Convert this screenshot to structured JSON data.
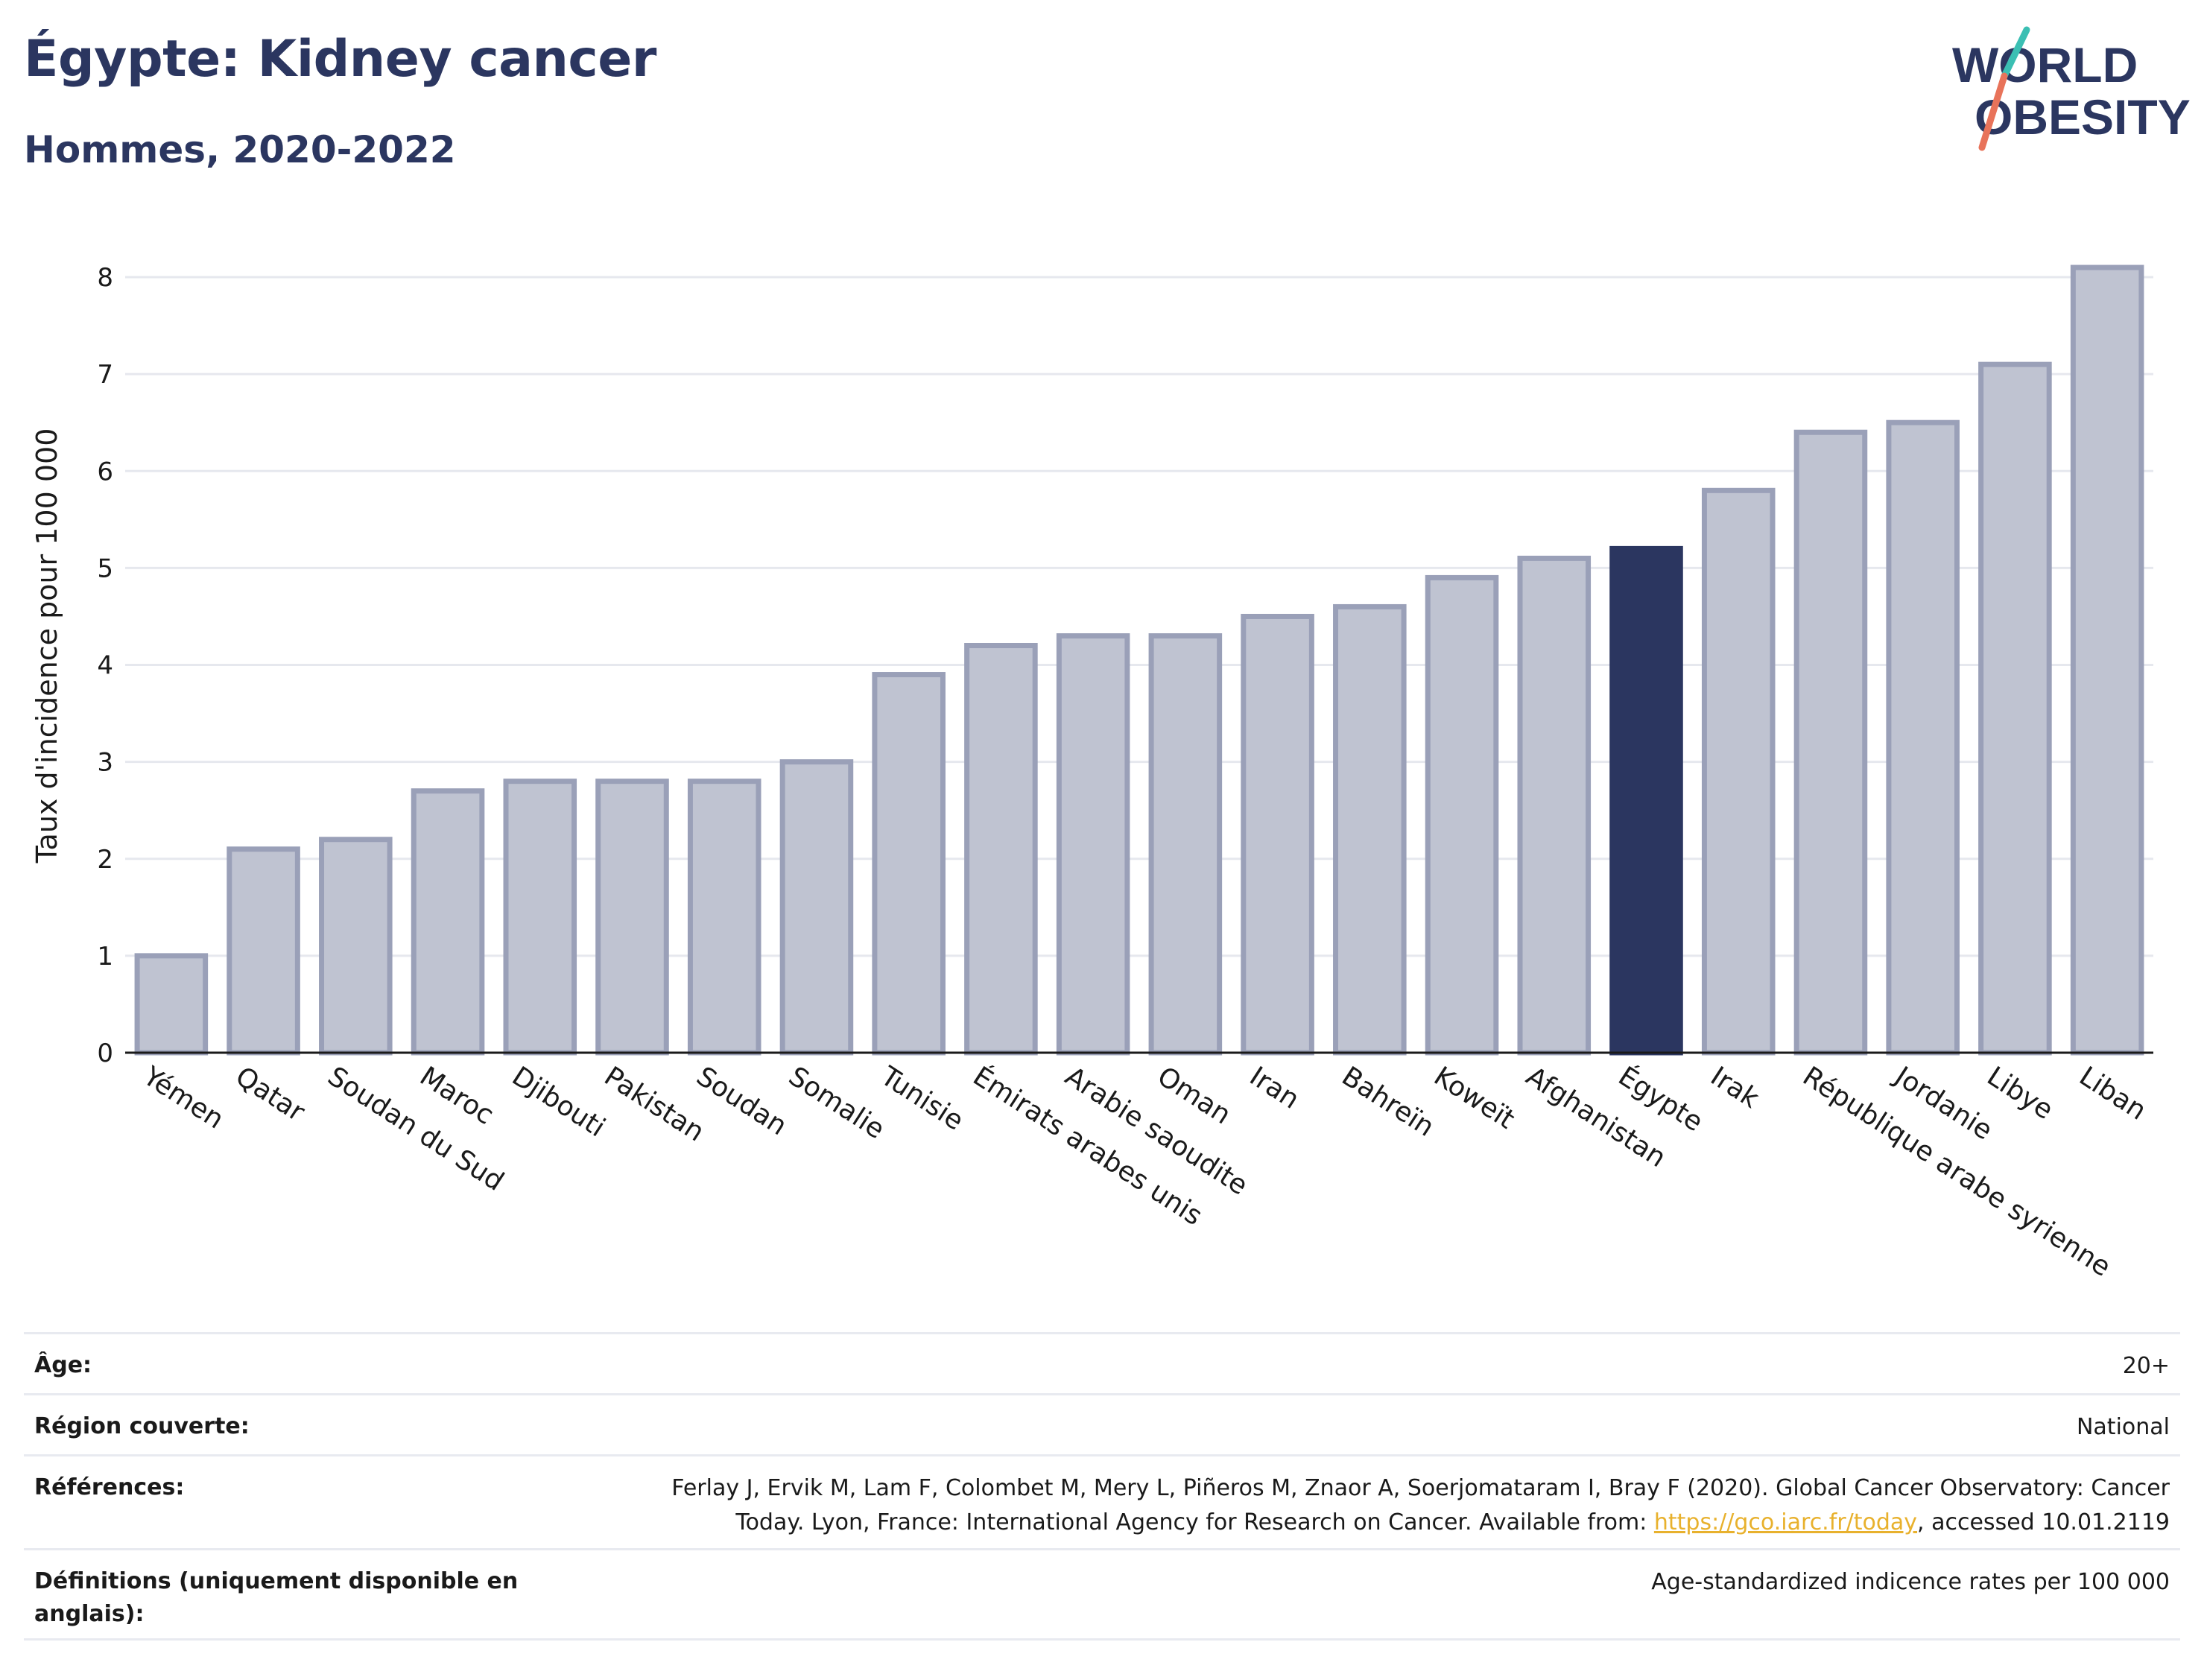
{
  "header": {
    "title": "Égypte: Kidney cancer",
    "subtitle": "Hommes, 2020-2022"
  },
  "logo": {
    "line1": "WORLD",
    "line2": "OBESITY",
    "colors": {
      "text": "#2b3660",
      "accent_teal": "#3bbfb3",
      "accent_coral": "#e8735a"
    }
  },
  "chart_data": {
    "type": "bar",
    "ylabel": "Taux d'incidence pour 100 000",
    "ylim": [
      0,
      8.4
    ],
    "yticks": [
      0,
      1,
      2,
      3,
      4,
      5,
      6,
      7,
      8
    ],
    "grid": true,
    "highlight_category": "Égypte",
    "colors": {
      "bar": "#bfc3d1",
      "bar_border": "#9aa0b8",
      "highlight": "#2b3660",
      "grid": "#e6e8ee"
    },
    "categories": [
      "Yémen",
      "Qatar",
      "Soudan du Sud",
      "Maroc",
      "Djibouti",
      "Pakistan",
      "Soudan",
      "Somalie",
      "Tunisie",
      "Émirats arabes unis",
      "Arabie saoudite",
      "Oman",
      "Iran",
      "Bahreïn",
      "Koweït",
      "Afghanistan",
      "Égypte",
      "Irak",
      "République arabe syrienne",
      "Jordanie",
      "Libye",
      "Liban"
    ],
    "values": [
      1.0,
      2.1,
      2.2,
      2.7,
      2.8,
      2.8,
      2.8,
      3.0,
      3.9,
      4.2,
      4.3,
      4.3,
      4.5,
      4.6,
      4.9,
      5.1,
      5.2,
      5.8,
      6.4,
      6.5,
      7.1,
      8.1
    ]
  },
  "meta": [
    {
      "label": "Âge:",
      "value": "20+"
    },
    {
      "label": "Région couverte:",
      "value": "National"
    },
    {
      "label": "Références:",
      "value_line1": "Ferlay J, Ervik M, Lam F, Colombet M, Mery L, Piñeros M, Znaor A, Soerjomataram I, Bray F (2020). Global Cancer Observatory: Cancer",
      "value_line2_pre": "Today. Lyon, France: International Agency for Research on Cancer. Available from: ",
      "link": "https://gco.iarc.fr/today",
      "value_line2_post": ", accessed 10.01.2119"
    },
    {
      "label": "Définitions (uniquement disponible en anglais):",
      "value": "Age-standardized indicence rates per 100 000"
    }
  ]
}
